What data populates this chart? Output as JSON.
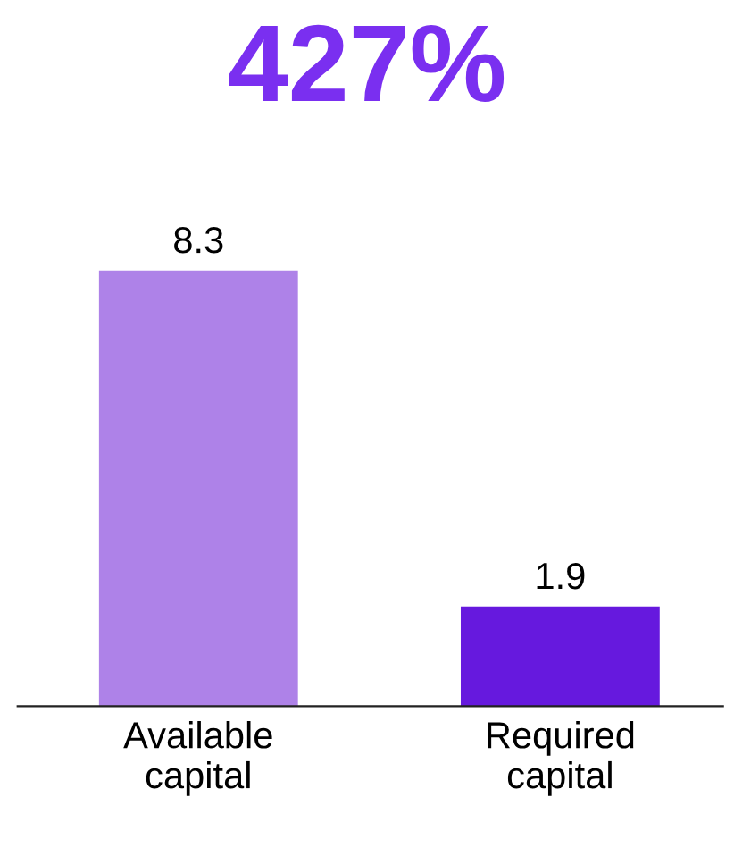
{
  "chart_data": {
    "type": "bar",
    "title": "427%",
    "categories": [
      "Available\ncapital",
      "Required\ncapital"
    ],
    "values": [
      8.3,
      1.9
    ],
    "colors": [
      "#ae82e8",
      "#6619de"
    ],
    "data_labels": true,
    "grid": false,
    "legend": false
  }
}
